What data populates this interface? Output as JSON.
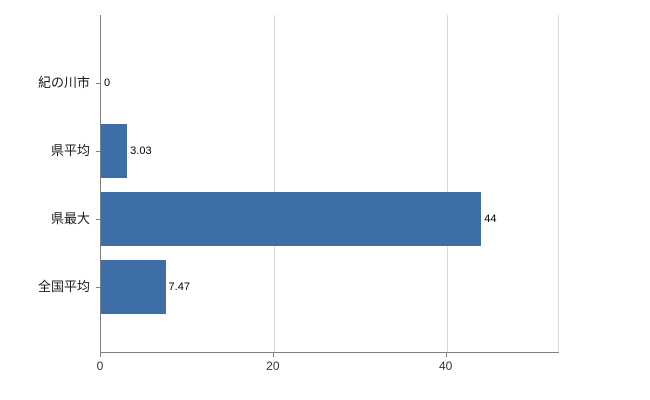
{
  "chart_data": {
    "type": "bar",
    "orientation": "horizontal",
    "title": "",
    "xlabel": "",
    "ylabel": "",
    "categories": [
      "紀の川市",
      "県平均",
      "県最大",
      "全国平均"
    ],
    "values": [
      0,
      3.03,
      44,
      7.47
    ],
    "value_labels": [
      "0",
      "3.03",
      "44",
      "7.47"
    ],
    "xticks": [
      0,
      20,
      40
    ],
    "xtick_labels": [
      "0",
      "20",
      "40"
    ],
    "xlim": [
      0,
      53
    ],
    "grid": true,
    "legend": false,
    "bar_color": "#3d6ea5",
    "grid_color": "#d9d9d9",
    "axis_color": "#808080",
    "text_color": "#1a1a1a"
  }
}
